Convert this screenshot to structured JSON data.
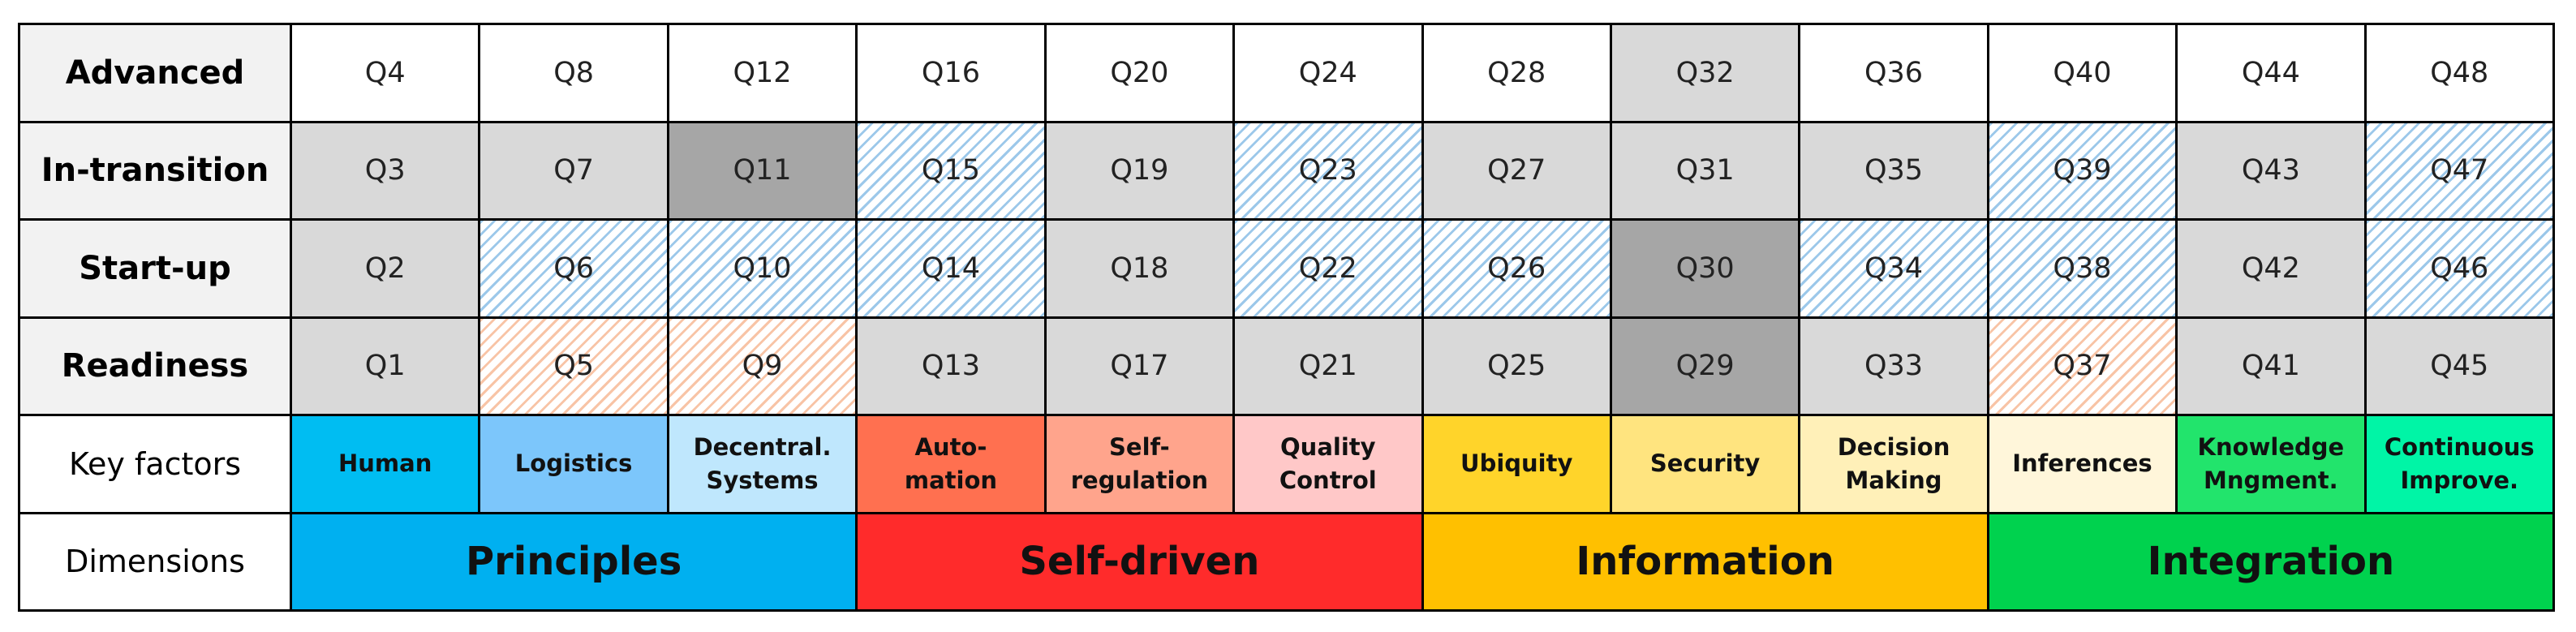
{
  "levels": [
    {
      "label": "Advanced",
      "cells": [
        {
          "label": "Q4",
          "fill": "white"
        },
        {
          "label": "Q8",
          "fill": "white"
        },
        {
          "label": "Q12",
          "fill": "white"
        },
        {
          "label": "Q16",
          "fill": "white"
        },
        {
          "label": "Q20",
          "fill": "white"
        },
        {
          "label": "Q24",
          "fill": "white"
        },
        {
          "label": "Q28",
          "fill": "white"
        },
        {
          "label": "Q32",
          "fill": "gray"
        },
        {
          "label": "Q36",
          "fill": "white"
        },
        {
          "label": "Q40",
          "fill": "white"
        },
        {
          "label": "Q44",
          "fill": "white"
        },
        {
          "label": "Q48",
          "fill": "white"
        }
      ]
    },
    {
      "label": "In-transition",
      "cells": [
        {
          "label": "Q3",
          "fill": "gray"
        },
        {
          "label": "Q7",
          "fill": "gray"
        },
        {
          "label": "Q11",
          "fill": "dark"
        },
        {
          "label": "Q15",
          "fill": "blue-hatch"
        },
        {
          "label": "Q19",
          "fill": "gray"
        },
        {
          "label": "Q23",
          "fill": "blue-hatch"
        },
        {
          "label": "Q27",
          "fill": "gray"
        },
        {
          "label": "Q31",
          "fill": "gray"
        },
        {
          "label": "Q35",
          "fill": "gray"
        },
        {
          "label": "Q39",
          "fill": "blue-hatch"
        },
        {
          "label": "Q43",
          "fill": "gray"
        },
        {
          "label": "Q47",
          "fill": "blue-hatch"
        }
      ]
    },
    {
      "label": "Start-up",
      "cells": [
        {
          "label": "Q2",
          "fill": "gray"
        },
        {
          "label": "Q6",
          "fill": "blue-hatch"
        },
        {
          "label": "Q10",
          "fill": "blue-hatch"
        },
        {
          "label": "Q14",
          "fill": "blue-hatch"
        },
        {
          "label": "Q18",
          "fill": "gray"
        },
        {
          "label": "Q22",
          "fill": "blue-hatch"
        },
        {
          "label": "Q26",
          "fill": "blue-hatch"
        },
        {
          "label": "Q30",
          "fill": "dark"
        },
        {
          "label": "Q34",
          "fill": "blue-hatch"
        },
        {
          "label": "Q38",
          "fill": "blue-hatch"
        },
        {
          "label": "Q42",
          "fill": "gray"
        },
        {
          "label": "Q46",
          "fill": "blue-hatch"
        }
      ]
    },
    {
      "label": "Readiness",
      "cells": [
        {
          "label": "Q1",
          "fill": "gray"
        },
        {
          "label": "Q5",
          "fill": "orange-hatch"
        },
        {
          "label": "Q9",
          "fill": "orange-hatch"
        },
        {
          "label": "Q13",
          "fill": "gray"
        },
        {
          "label": "Q17",
          "fill": "gray"
        },
        {
          "label": "Q21",
          "fill": "gray"
        },
        {
          "label": "Q25",
          "fill": "gray"
        },
        {
          "label": "Q29",
          "fill": "dark"
        },
        {
          "label": "Q33",
          "fill": "gray"
        },
        {
          "label": "Q37",
          "fill": "orange-hatch"
        },
        {
          "label": "Q41",
          "fill": "gray"
        },
        {
          "label": "Q45",
          "fill": "gray"
        }
      ]
    }
  ],
  "key_factors": {
    "label": "Key factors",
    "items": [
      {
        "label": "Human",
        "color": "#00bdf2"
      },
      {
        "label": "Logistics",
        "color": "#7cc6fb"
      },
      {
        "label": "Decentral.\nSystems",
        "color": "#bfe7fd"
      },
      {
        "label": "Auto-\nmation",
        "color": "#ff7050"
      },
      {
        "label": "Self-\nregulation",
        "color": "#ffa48c"
      },
      {
        "label": "Quality\nControl",
        "color": "#ffc8c8"
      },
      {
        "label": "Ubiquity",
        "color": "#ffd42a"
      },
      {
        "label": "Security",
        "color": "#ffe47f"
      },
      {
        "label": "Decision\nMaking",
        "color": "#fff0b8"
      },
      {
        "label": "Inferences",
        "color": "#fff6da"
      },
      {
        "label": "Knowledge\nMngment.",
        "color": "#22e46c"
      },
      {
        "label": "Continuous\nImprove.",
        "color": "#00f5a6"
      }
    ]
  },
  "dimensions": {
    "label": "Dimensions",
    "items": [
      {
        "label": "Principles",
        "color": "#00b0f0"
      },
      {
        "label": "Self-driven",
        "color": "#ff2b2b"
      },
      {
        "label": "Information",
        "color": "#ffc000"
      },
      {
        "label": "Integration",
        "color": "#00d24e"
      }
    ]
  }
}
